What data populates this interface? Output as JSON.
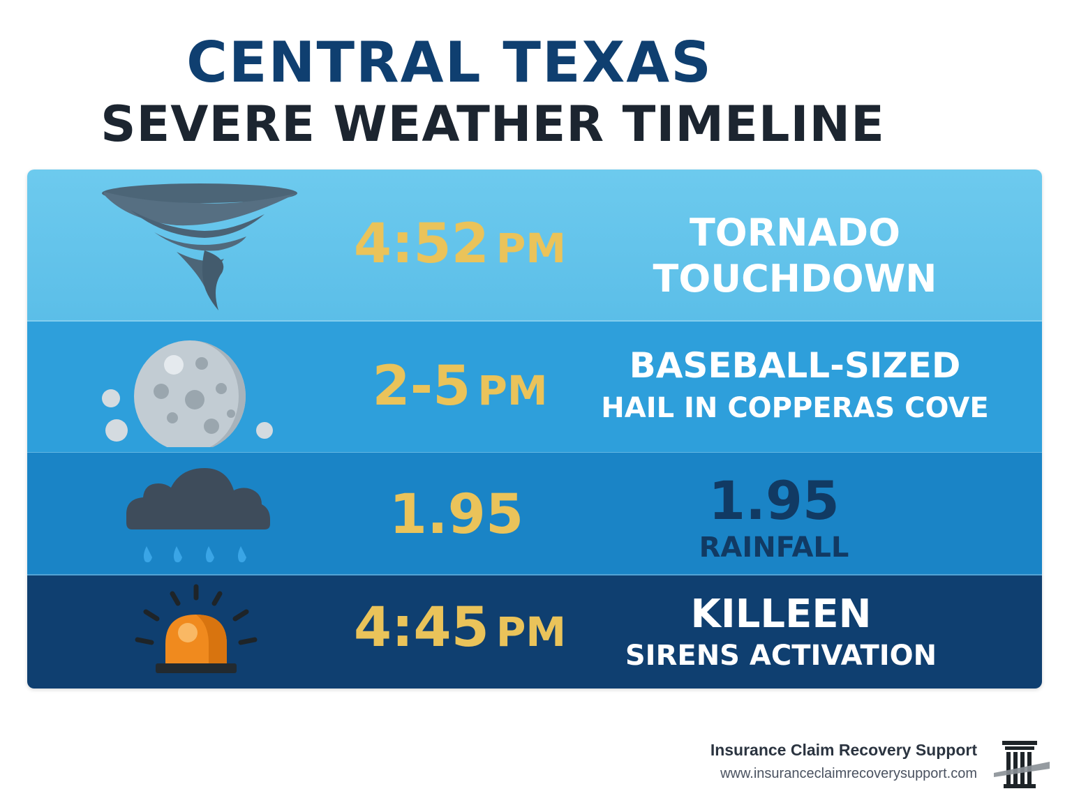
{
  "title": {
    "line1": "CENTRAL TEXAS",
    "line2": "SEVERE WEATHER TIMELINE"
  },
  "timeline": [
    {
      "icon": "tornado-icon",
      "time_value": "4:52",
      "time_suffix": "PM",
      "desc_line1": "TORNADO",
      "desc_line2": "TOUCHDOWN"
    },
    {
      "icon": "hail-icon",
      "time_value": "2-5",
      "time_suffix": "PM",
      "desc_line1": "BASEBALL-SIZED",
      "desc_line2": "HAIL IN COPPERAS COVE"
    },
    {
      "icon": "rain-cloud-icon",
      "time_value": "1.95",
      "time_suffix": "",
      "desc_line1": "1.95",
      "desc_line2": "RAINFALL"
    },
    {
      "icon": "siren-icon",
      "time_value": "4:45",
      "time_suffix": "PM",
      "desc_line1": "KILLEEN",
      "desc_line2": "SIRENS ACTIVATION"
    }
  ],
  "footer": {
    "company": "Insurance Claim Recovery Support",
    "url": "www.insuranceclaimrecoverysupport.com",
    "logo_icon": "pillar-logo-icon"
  },
  "colors": {
    "title_blue": "#0f3f70",
    "title_dark": "#1c2530",
    "accent_gold": "#eac35a",
    "row1": "#62c3eb",
    "row2": "#2e9fdb",
    "row3": "#1a84c6",
    "row4": "#0f3f70"
  }
}
